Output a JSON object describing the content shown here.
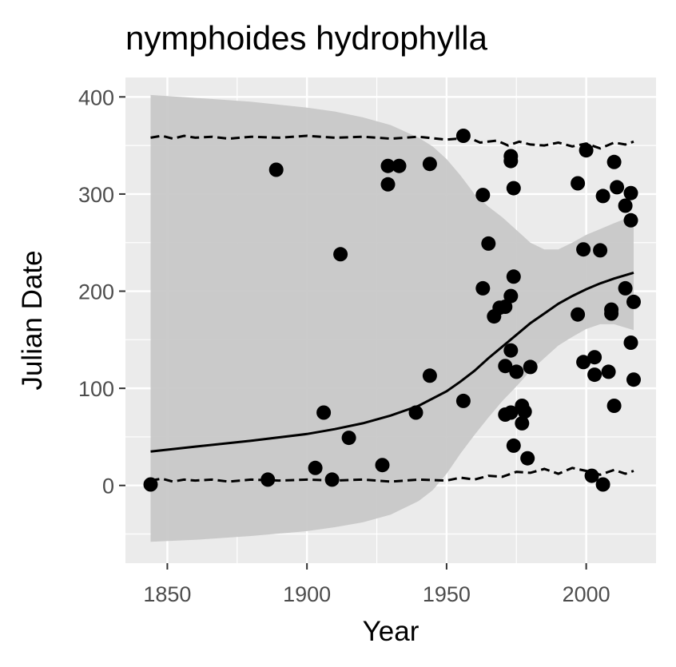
{
  "chart_data": {
    "type": "scatter",
    "title": "nymphoides hydrophylla",
    "xlabel": "Year",
    "ylabel": "Julian Date",
    "xlim": [
      1835,
      2025
    ],
    "ylim": [
      -80,
      420
    ],
    "x_ticks": [
      1850,
      1900,
      1950,
      2000
    ],
    "y_ticks": [
      0,
      100,
      200,
      300,
      400
    ],
    "x_tick_labels": [
      "1850",
      "1900",
      "1950",
      "2000"
    ],
    "y_tick_labels": [
      "0",
      "100",
      "200",
      "300",
      "400"
    ],
    "grid": true,
    "colors": {
      "panel_background": "#ebebeb",
      "grid": "#ffffff",
      "ribbon": "#c8c8c8",
      "points": "#000000",
      "lines": "#000000"
    },
    "points": [
      [
        1844,
        1
      ],
      [
        1886,
        6
      ],
      [
        1889,
        325
      ],
      [
        1903,
        18
      ],
      [
        1906,
        75
      ],
      [
        1909,
        6
      ],
      [
        1912,
        238
      ],
      [
        1915,
        49
      ],
      [
        1927,
        21
      ],
      [
        1929,
        329
      ],
      [
        1929,
        310
      ],
      [
        1933,
        329
      ],
      [
        1939,
        75
      ],
      [
        1944,
        331
      ],
      [
        1944,
        113
      ],
      [
        1956,
        360
      ],
      [
        1956,
        87
      ],
      [
        1963,
        299
      ],
      [
        1963,
        203
      ],
      [
        1965,
        249
      ],
      [
        1967,
        174
      ],
      [
        1969,
        183
      ],
      [
        1971,
        184
      ],
      [
        1971,
        123
      ],
      [
        1971,
        73
      ],
      [
        1973,
        339
      ],
      [
        1973,
        334
      ],
      [
        1973,
        195
      ],
      [
        1973,
        139
      ],
      [
        1973,
        75
      ],
      [
        1974,
        306
      ],
      [
        1974,
        215
      ],
      [
        1974,
        41
      ],
      [
        1975,
        117
      ],
      [
        1977,
        82
      ],
      [
        1977,
        64
      ],
      [
        1978,
        76
      ],
      [
        1979,
        28
      ],
      [
        1980,
        122
      ],
      [
        1997,
        311
      ],
      [
        1997,
        176
      ],
      [
        1999,
        243
      ],
      [
        1999,
        127
      ],
      [
        2000,
        345
      ],
      [
        2002,
        10
      ],
      [
        2003,
        114
      ],
      [
        2003,
        132
      ],
      [
        2005,
        242
      ],
      [
        2006,
        298
      ],
      [
        2006,
        1
      ],
      [
        2008,
        117
      ],
      [
        2009,
        181
      ],
      [
        2009,
        177
      ],
      [
        2010,
        333
      ],
      [
        2010,
        82
      ],
      [
        2011,
        307
      ],
      [
        2014,
        288
      ],
      [
        2014,
        203
      ],
      [
        2016,
        301
      ],
      [
        2016,
        273
      ],
      [
        2016,
        147
      ],
      [
        2017,
        189
      ],
      [
        2017,
        109
      ]
    ],
    "fit_line": {
      "x": [
        1844,
        1860,
        1880,
        1900,
        1910,
        1920,
        1930,
        1940,
        1950,
        1955,
        1960,
        1965,
        1970,
        1975,
        1980,
        1985,
        1990,
        1995,
        2000,
        2005,
        2010,
        2017
      ],
      "y": [
        35,
        40,
        46,
        53,
        58,
        64,
        72,
        82,
        97,
        107,
        118,
        131,
        143,
        155,
        167,
        177,
        187,
        195,
        202,
        208,
        213,
        219
      ]
    },
    "ribbon": {
      "x": [
        1844,
        1860,
        1880,
        1900,
        1910,
        1920,
        1930,
        1940,
        1945,
        1950,
        1955,
        1960,
        1965,
        1970,
        1975,
        1980,
        1985,
        1990,
        1995,
        2000,
        2005,
        2010,
        2017
      ],
      "upper": [
        402,
        399,
        395,
        389,
        385,
        379,
        371,
        358,
        349,
        336,
        319,
        300,
        287,
        276,
        263,
        250,
        243,
        243,
        250,
        258,
        264,
        270,
        278
      ],
      "lower": [
        -58,
        -56,
        -52,
        -47,
        -43,
        -38,
        -30,
        -16,
        -5,
        12,
        33,
        52,
        70,
        87,
        102,
        118,
        131,
        144,
        153,
        161,
        166,
        166,
        160
      ]
    },
    "upper_dashed": {
      "x": [
        1844,
        1848,
        1852,
        1856,
        1860,
        1866,
        1872,
        1880,
        1890,
        1900,
        1910,
        1920,
        1930,
        1940,
        1950,
        1958,
        1962,
        1968,
        1972,
        1976,
        1980,
        1985,
        1990,
        1995,
        2000,
        2005,
        2010,
        2014,
        2017
      ],
      "y": [
        358,
        360,
        357,
        360,
        358,
        359,
        357,
        359,
        358,
        360,
        358,
        359,
        357,
        359,
        356,
        358,
        353,
        355,
        350,
        354,
        351,
        350,
        353,
        349,
        352,
        347,
        353,
        351,
        354
      ]
    },
    "lower_dashed": {
      "x": [
        1844,
        1848,
        1852,
        1856,
        1860,
        1866,
        1872,
        1880,
        1890,
        1900,
        1910,
        1920,
        1930,
        1940,
        1950,
        1955,
        1960,
        1965,
        1970,
        1975,
        1980,
        1985,
        1990,
        1995,
        2000,
        2005,
        2010,
        2014,
        2017
      ],
      "y": [
        5,
        7,
        4,
        6,
        5,
        6,
        4,
        6,
        5,
        6,
        5,
        6,
        4,
        6,
        5,
        8,
        6,
        10,
        9,
        14,
        13,
        17,
        12,
        18,
        15,
        11,
        16,
        12,
        15
      ]
    }
  }
}
